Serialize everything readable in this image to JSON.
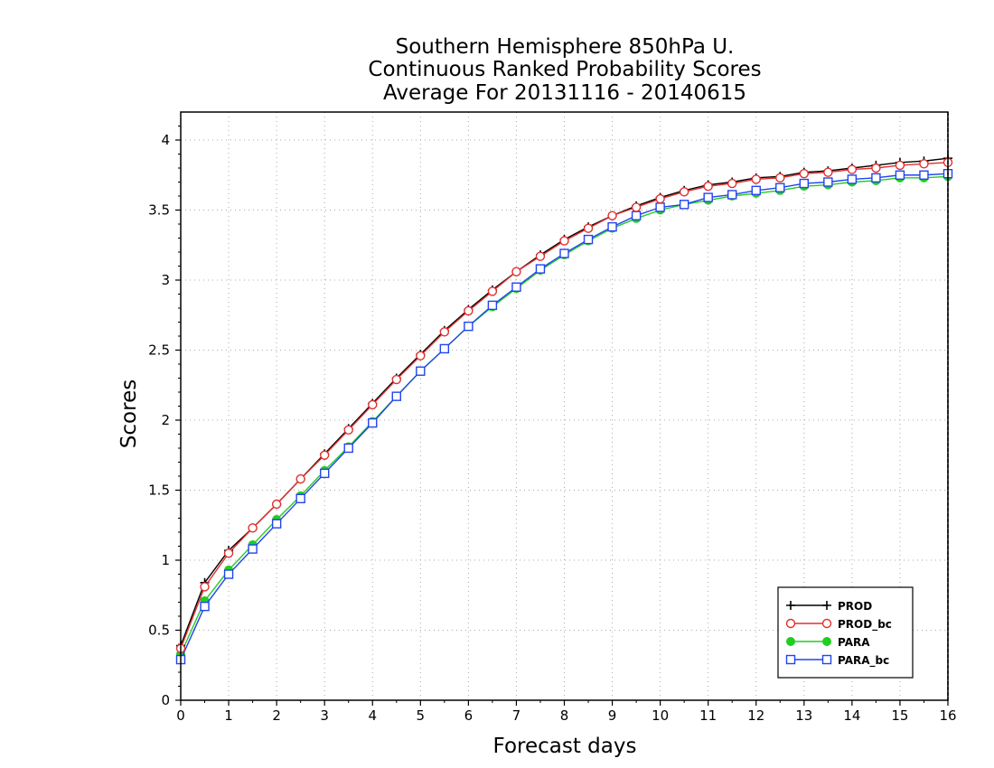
{
  "chart_data": {
    "type": "line",
    "title": [
      "Southern Hemisphere 850hPa U.",
      "Continuous Ranked Probability Scores",
      "Average For 20131116 - 20140615"
    ],
    "xlabel": "Forecast days",
    "ylabel": "Scores",
    "xlim": [
      0,
      16
    ],
    "ylim": [
      0,
      4.2
    ],
    "xticks": [
      0,
      1,
      2,
      3,
      4,
      5,
      6,
      7,
      8,
      9,
      10,
      11,
      12,
      13,
      14,
      15,
      16
    ],
    "yticks": [
      0,
      0.5,
      1,
      1.5,
      2,
      2.5,
      3,
      3.5,
      4
    ],
    "ytick_labels": [
      "0",
      "0.5",
      "1",
      "1.5",
      "2",
      "2.5",
      "3",
      "3.5",
      "4"
    ],
    "grid": true,
    "legend_position": "bottom-right",
    "x": [
      0,
      0.5,
      1,
      1.5,
      2,
      2.5,
      3,
      3.5,
      4,
      4.5,
      5,
      5.5,
      6,
      6.5,
      7,
      7.5,
      8,
      8.5,
      9,
      9.5,
      10,
      10.5,
      11,
      11.5,
      12,
      12.5,
      13,
      13.5,
      14,
      14.5,
      15,
      15.5,
      16
    ],
    "series": [
      {
        "name": "PROD",
        "color": "#000000",
        "marker": "plus",
        "values": [
          0.39,
          0.84,
          1.07,
          1.23,
          1.4,
          1.58,
          1.76,
          1.94,
          2.12,
          2.3,
          2.47,
          2.64,
          2.79,
          2.93,
          3.06,
          3.18,
          3.29,
          3.38,
          3.46,
          3.53,
          3.59,
          3.64,
          3.68,
          3.7,
          3.73,
          3.74,
          3.77,
          3.78,
          3.8,
          3.82,
          3.84,
          3.85,
          3.87
        ]
      },
      {
        "name": "PROD_bc",
        "color": "#e03030",
        "marker": "circle-open",
        "values": [
          0.37,
          0.81,
          1.05,
          1.23,
          1.4,
          1.58,
          1.75,
          1.93,
          2.11,
          2.29,
          2.46,
          2.63,
          2.78,
          2.92,
          3.06,
          3.17,
          3.28,
          3.37,
          3.46,
          3.52,
          3.58,
          3.63,
          3.67,
          3.69,
          3.72,
          3.73,
          3.76,
          3.77,
          3.79,
          3.8,
          3.82,
          3.83,
          3.84
        ]
      },
      {
        "name": "PARA",
        "color": "#22cc22",
        "marker": "circle-filled",
        "values": [
          0.33,
          0.71,
          0.93,
          1.11,
          1.29,
          1.46,
          1.64,
          1.81,
          1.99,
          2.17,
          2.35,
          2.51,
          2.67,
          2.81,
          2.94,
          3.07,
          3.18,
          3.28,
          3.37,
          3.44,
          3.5,
          3.54,
          3.57,
          3.6,
          3.62,
          3.64,
          3.67,
          3.68,
          3.7,
          3.71,
          3.73,
          3.73,
          3.74
        ]
      },
      {
        "name": "PARA_bc",
        "color": "#2244ee",
        "marker": "square-open",
        "values": [
          0.29,
          0.67,
          0.9,
          1.08,
          1.26,
          1.44,
          1.62,
          1.8,
          1.98,
          2.17,
          2.35,
          2.51,
          2.67,
          2.82,
          2.95,
          3.08,
          3.19,
          3.29,
          3.38,
          3.46,
          3.52,
          3.54,
          3.59,
          3.61,
          3.64,
          3.66,
          3.69,
          3.7,
          3.72,
          3.73,
          3.75,
          3.75,
          3.76
        ]
      }
    ]
  }
}
